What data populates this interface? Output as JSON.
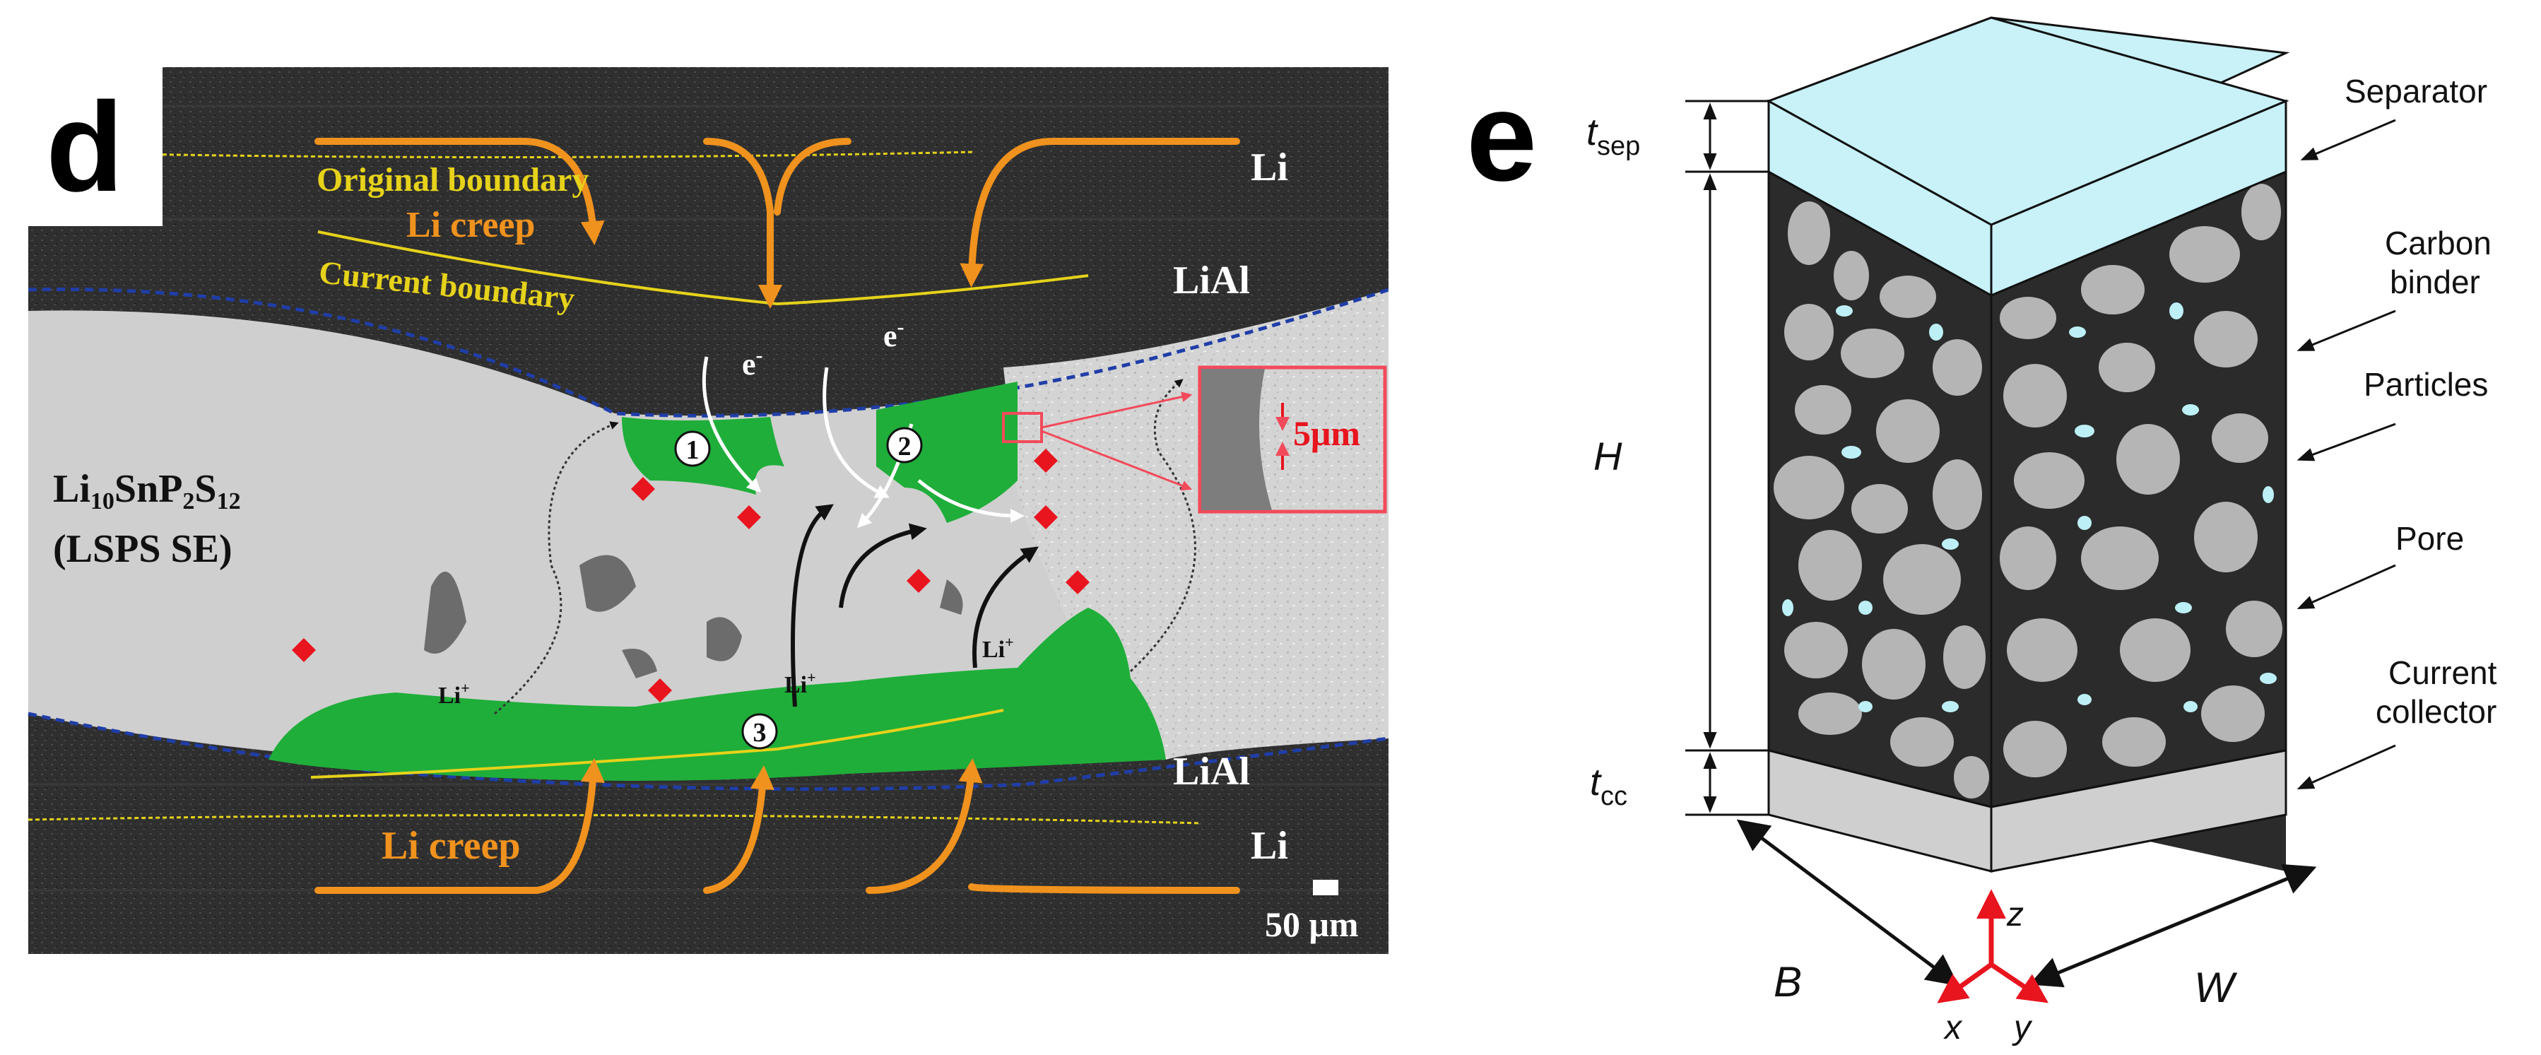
{
  "panel_d": {
    "panel_letter": "d",
    "labels": {
      "original_boundary": "Original boundary",
      "li_creep_top": "Li creep",
      "current_boundary": "Current boundary",
      "li_top": "Li",
      "lial_top": "LiAl",
      "electrolyte_formula_main": "Li",
      "electrolyte_formula_sub1": "10",
      "electrolyte_formula_mid1": "SnP",
      "electrolyte_formula_sub2": "2",
      "electrolyte_formula_mid2": "S",
      "electrolyte_formula_sub3": "12",
      "electrolyte_abbrev": "(LSPS SE)",
      "electron_1": "e",
      "electron_2": "e",
      "electron_sup": "-",
      "circle_1": "1",
      "circle_2": "2",
      "circle_3": "3",
      "li_ion": "Li",
      "li_ion_sup": "+",
      "inset_scale": "5μm",
      "lial_bottom": "LiAl",
      "li_creep_bottom": "Li creep",
      "li_bottom": "Li",
      "scale_bar": "50 μm"
    },
    "colors": {
      "lithium_dark": "#2f2f2f",
      "electrolyte": "#cfcfcf",
      "dendrite_green": "#1fae3a",
      "li_creep_orange": "#f0921e",
      "boundary_yellow": "#e6d21a",
      "interface_blue": "#1f3ea8",
      "marker_red": "#e8141e",
      "text_white": "#ffffff"
    }
  },
  "panel_e": {
    "panel_letter": "e",
    "labels": {
      "t_sep_main": "t",
      "t_sep_sub": "sep",
      "height": "H",
      "t_cc_main": "t",
      "t_cc_sub": "cc",
      "separator": "Separator",
      "carbon_binder_1": "Carbon",
      "carbon_binder_2": "binder",
      "particles": "Particles",
      "pore": "Pore",
      "current_collector_1": "Current",
      "current_collector_2": "collector",
      "depth": "B",
      "width": "W",
      "axis_x": "x",
      "axis_y": "y",
      "axis_z": "z"
    },
    "colors": {
      "separator": "#c8f1f8",
      "pore_dark": "#2b2b2b",
      "particle_gray": "#b5b5b5",
      "binder_cyan": "#bdf0f6",
      "collector": "#cfcfcf",
      "axis_red": "#e8141e"
    }
  }
}
